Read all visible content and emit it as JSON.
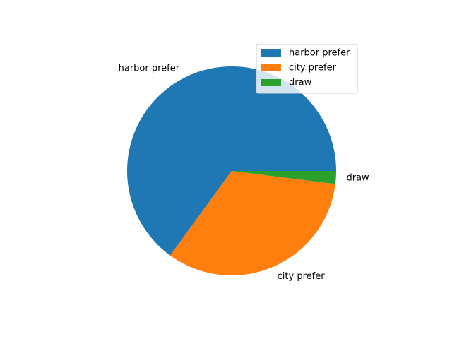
{
  "chart_data": {
    "type": "pie",
    "categories": [
      "harbor prefer",
      "city prefer",
      "draw"
    ],
    "values": [
      65,
      33,
      2
    ],
    "colors": [
      "#1f77b4",
      "#ff7f0e",
      "#2ca02c"
    ],
    "start_angle_deg": 0,
    "direction": "counterclockwise",
    "legend": {
      "placement": "upper-right",
      "entries": [
        "harbor prefer",
        "city prefer",
        "draw"
      ]
    }
  }
}
